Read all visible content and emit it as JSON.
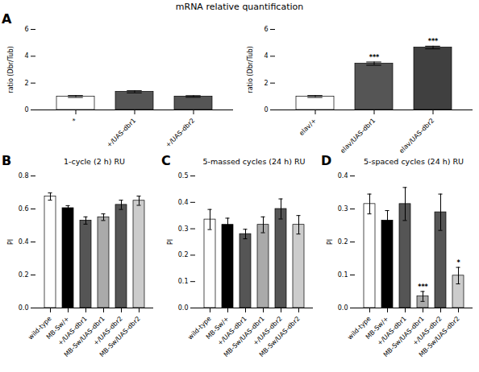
{
  "title": "mRNA relative quantification",
  "chart_data": [
    {
      "type": "bar",
      "panel_label": "A",
      "categories": [
        "*",
        "+/UAS-dbr1",
        "+/UAS-dbr2"
      ],
      "values": [
        1.0,
        1.35,
        1.0
      ],
      "errors": [
        0.07,
        0.08,
        0.06
      ],
      "colors": [
        "white",
        "#555555",
        "#555555"
      ],
      "ylabel": "ratio (Dbr/Tub)",
      "ylim": [
        0,
        6
      ],
      "yticks": [
        0,
        2,
        4,
        6
      ]
    },
    {
      "type": "bar",
      "categories": [
        "elav/+",
        "elav/UAS-dbr1",
        "elav/UAS-dbr2"
      ],
      "values": [
        1.0,
        3.45,
        4.65
      ],
      "errors": [
        0.07,
        0.12,
        0.1
      ],
      "colors": [
        "white",
        "#555555",
        "#404040"
      ],
      "sig_labels": [
        null,
        "***",
        "***"
      ],
      "ylabel": "ratio (Dbr/Tub)",
      "ylim": [
        0,
        6
      ],
      "yticks": [
        0,
        2,
        4,
        6
      ]
    },
    {
      "type": "bar",
      "panel_label": "B",
      "title": "1-cycle (2 h) RU",
      "categories": [
        "wild-type",
        "MB-Sw/+",
        "+/UAS-dbr1",
        "MB-Sw/UAS-dbr1",
        "+/UAS-dbr2",
        "MB-Sw/UAS-dbr2"
      ],
      "values": [
        0.675,
        0.605,
        0.53,
        0.55,
        0.625,
        0.65
      ],
      "errors": [
        0.022,
        0.015,
        0.022,
        0.02,
        0.028,
        0.028
      ],
      "colors": [
        "white",
        "black",
        "#555555",
        "#aaaaaa",
        "#555555",
        "#cccccc"
      ],
      "ylabel": "PI",
      "ylim": [
        0,
        0.8
      ],
      "yticks": [
        {
          "value": 0.0,
          "label": "0.0"
        },
        0.2,
        0.4,
        0.6,
        0.8
      ]
    },
    {
      "type": "bar",
      "panel_label": "C",
      "title": "5-massed cycles (24 h) RU",
      "categories": [
        "wild-type",
        "MB-Sw/+",
        "+/UAS-dbr1",
        "MB-Sw/UAS-dbr1",
        "+/UAS-dbr2",
        "MB-Sw/UAS-dbr2"
      ],
      "values": [
        0.335,
        0.315,
        0.28,
        0.315,
        0.375,
        0.315
      ],
      "errors": [
        0.038,
        0.025,
        0.018,
        0.03,
        0.038,
        0.035
      ],
      "colors": [
        "white",
        "black",
        "#555555",
        "#aaaaaa",
        "#555555",
        "#cccccc"
      ],
      "ylabel": "PI",
      "ylim": [
        0,
        0.5
      ],
      "yticks": [
        {
          "value": 0.0,
          "label": "0.0"
        },
        0.1,
        0.2,
        0.3,
        0.4,
        0.5
      ]
    },
    {
      "type": "bar",
      "panel_label": "D",
      "title": "5-spaced cycles (24 h) RU",
      "categories": [
        "wild-type",
        "MB-Sw/+",
        "+/UAS-dbr1",
        "MB-Sw/UAS-dbr1",
        "+/UAS-dbr2",
        "MB-Sw/UAS-dbr2"
      ],
      "values": [
        0.315,
        0.265,
        0.315,
        0.035,
        0.29,
        0.098
      ],
      "errors": [
        0.03,
        0.03,
        0.05,
        0.015,
        0.055,
        0.025
      ],
      "colors": [
        "white",
        "black",
        "#555555",
        "#aaaaaa",
        "#555555",
        "#cccccc"
      ],
      "sig_labels": [
        null,
        null,
        null,
        "***",
        null,
        "*"
      ],
      "ylabel": "PI",
      "ylim": [
        0,
        0.4
      ],
      "yticks": [
        {
          "value": 0.0,
          "label": "0.0"
        },
        0.1,
        0.2,
        0.3,
        0.4
      ]
    }
  ]
}
